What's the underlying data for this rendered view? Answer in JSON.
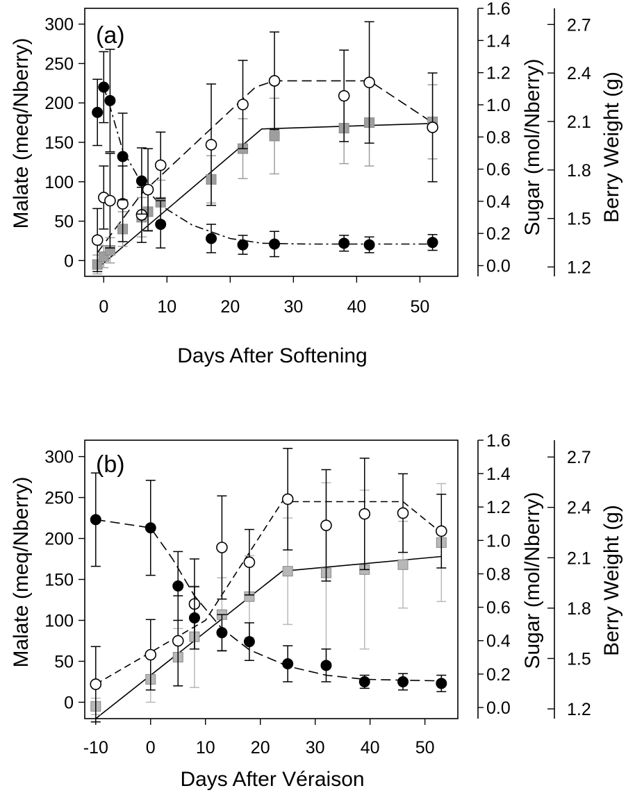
{
  "chart_data": [
    {
      "type": "scatter",
      "panel_label": "(a)",
      "xlabel": "Days After Softening",
      "ylabel_left": "Malate (meq/Nberry)",
      "ylabel_right1": "Sugar (mol/Nberry)",
      "ylabel_right2": "Berry Weight (g)",
      "xlim": [
        -3,
        56
      ],
      "ylim_left": [
        -20,
        320
      ],
      "ylim_right1": [
        -0.0667,
        1.6
      ],
      "ylim_right2": [
        1.142,
        2.8
      ],
      "xticks": [
        0,
        10,
        20,
        30,
        40,
        50
      ],
      "yticks_left": [
        0,
        50,
        100,
        150,
        200,
        250,
        300
      ],
      "yticks_right1": [
        0.0,
        0.2,
        0.4,
        0.6,
        0.8,
        1.0,
        1.2,
        1.4,
        1.6
      ],
      "yticks_right2": [
        1.2,
        1.5,
        1.8,
        2.1,
        2.4,
        2.7
      ],
      "series": [
        {
          "key": "malate",
          "axis": "left",
          "marker": "filled-circle",
          "color": "#000000",
          "line": "dash-dot",
          "x": [
            -1,
            0,
            1,
            3,
            6,
            9,
            17,
            22,
            27,
            38,
            42,
            52
          ],
          "y": [
            188,
            220,
            203,
            132,
            101,
            46,
            28,
            20,
            21,
            22,
            20,
            23
          ],
          "err": [
            42,
            45,
            65,
            55,
            42,
            30,
            18,
            12,
            16,
            10,
            10,
            10
          ]
        },
        {
          "key": "sugar",
          "axis": "left",
          "marker": "open-circle",
          "color": "#000000",
          "line": "dash",
          "x": [
            -1,
            0,
            1,
            3,
            6,
            7,
            9,
            17,
            22,
            27,
            38,
            42,
            52
          ],
          "y": [
            26,
            80,
            76,
            72,
            58,
            90,
            121,
            147,
            198,
            228,
            209,
            226,
            169
          ],
          "err": [
            40,
            40,
            60,
            48,
            35,
            52,
            42,
            77,
            56,
            62,
            58,
            77,
            69
          ]
        },
        {
          "key": "berry_weight",
          "axis": "left",
          "marker": "filled-square",
          "color": "#9e9e9e",
          "line": "solid",
          "x": [
            -1,
            0,
            1,
            3,
            6,
            7,
            9,
            17,
            22,
            27,
            38,
            42,
            52
          ],
          "y": [
            -5,
            5,
            13,
            40,
            55,
            62,
            74,
            103,
            142,
            158,
            168,
            175,
            176
          ],
          "err": [
            12,
            14,
            16,
            22,
            25,
            25,
            28,
            30,
            38,
            48,
            45,
            55,
            47
          ]
        }
      ],
      "fit_lines": [
        {
          "key": "malate-fit",
          "style": "dash-dot",
          "x": [
            0,
            1,
            3,
            6,
            9,
            14,
            20,
            25,
            32,
            38,
            42,
            52
          ],
          "y": [
            220,
            195,
            140,
            98,
            70,
            45,
            28,
            22,
            21,
            21,
            21,
            21
          ]
        },
        {
          "key": "sugar-fit",
          "style": "dash",
          "x": [
            -1,
            6,
            24,
            27,
            42,
            52
          ],
          "y": [
            10,
            85,
            220,
            228,
            228,
            175
          ]
        },
        {
          "key": "weight-fit",
          "style": "solid",
          "x": [
            -1,
            25,
            52
          ],
          "y": [
            -10,
            167,
            174
          ]
        }
      ]
    },
    {
      "type": "scatter",
      "panel_label": "(b)",
      "xlabel": "Days After Véraison",
      "ylabel_left": "Malate  (meq/Nberry)",
      "ylabel_right1": "Sugar (mol/Nberry)",
      "ylabel_right2": "Berry Weight (g)",
      "xlim": [
        -12,
        56
      ],
      "ylim_left": [
        -20,
        320
      ],
      "ylim_right1": [
        -0.0667,
        1.6
      ],
      "ylim_right2": [
        1.142,
        2.8
      ],
      "xticks": [
        -10,
        0,
        10,
        20,
        30,
        40,
        50
      ],
      "yticks_left": [
        0,
        50,
        100,
        150,
        200,
        250,
        300
      ],
      "yticks_right1": [
        0.0,
        0.2,
        0.4,
        0.6,
        0.8,
        1.0,
        1.2,
        1.4,
        1.6
      ],
      "yticks_right2": [
        1.2,
        1.5,
        1.8,
        2.1,
        2.4,
        2.7
      ],
      "series": [
        {
          "key": "malate",
          "axis": "left",
          "marker": "filled-circle",
          "color": "#000000",
          "line": "dash",
          "x": [
            -10,
            0,
            5,
            8,
            13,
            18,
            25,
            32,
            39,
            46,
            53
          ],
          "y": [
            223,
            213,
            142,
            103,
            85,
            74,
            47,
            45,
            25,
            25,
            23
          ],
          "err": [
            57,
            58,
            42,
            38,
            22,
            23,
            22,
            20,
            8,
            10,
            10
          ]
        },
        {
          "key": "sugar",
          "axis": "left",
          "marker": "open-circle",
          "color": "#000000",
          "line": "dash",
          "x": [
            -10,
            0,
            5,
            8,
            13,
            18,
            25,
            32,
            39,
            46,
            53
          ],
          "y": [
            22,
            58,
            75,
            120,
            189,
            171,
            248,
            216,
            230,
            231,
            209
          ],
          "err": [
            46,
            43,
            55,
            55,
            63,
            40,
            62,
            68,
            68,
            48,
            45
          ]
        },
        {
          "key": "berry_weight",
          "axis": "left",
          "marker": "filled-square",
          "color": "#b8b8b8",
          "line": "solid",
          "x": [
            -10,
            0,
            5,
            8,
            13,
            18,
            25,
            32,
            39,
            46,
            53
          ],
          "y": [
            -5,
            28,
            55,
            80,
            107,
            129,
            160,
            158,
            162,
            168,
            195
          ],
          "err": [
            10,
            28,
            35,
            62,
            45,
            50,
            65,
            110,
            97,
            53,
            72
          ]
        }
      ],
      "fit_lines": [
        {
          "key": "malate-fit",
          "style": "dash",
          "x": [
            -10,
            0,
            4,
            8,
            13,
            18,
            25,
            32,
            39,
            46,
            53
          ],
          "y": [
            223,
            213,
            175,
            130,
            90,
            64,
            44,
            33,
            28,
            27,
            26
          ]
        },
        {
          "key": "sugar-fit",
          "style": "dash-light",
          "x": [
            -10,
            10,
            24,
            25,
            46,
            53
          ],
          "y": [
            22,
            100,
            245,
            245,
            245,
            207
          ]
        },
        {
          "key": "weight-fit",
          "style": "solid",
          "x": [
            -10,
            24,
            53
          ],
          "y": [
            -20,
            160,
            178
          ]
        }
      ]
    }
  ]
}
